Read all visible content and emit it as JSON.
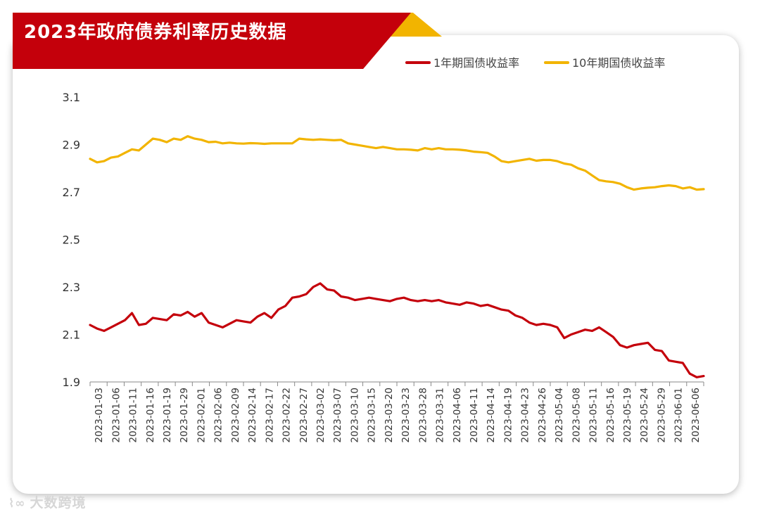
{
  "chart_data": {
    "type": "line",
    "title": "2023年政府债券利率历史数据",
    "ylim": [
      1.9,
      3.1
    ],
    "yticks": [
      "1.9",
      "2.1",
      "2.3",
      "2.5",
      "2.7",
      "2.9",
      "3.1"
    ],
    "grid": false,
    "legend_position": "top-right",
    "xtick_labels": [
      "2023-01-03",
      "2023-01-06",
      "2023-01-11",
      "2023-01-16",
      "2023-01-19",
      "2023-01-29",
      "2023-02-01",
      "2023-02-06",
      "2023-02-09",
      "2023-02-14",
      "2023-02-17",
      "2023-02-22",
      "2023-02-27",
      "2023-03-02",
      "2023-03-07",
      "2023-03-10",
      "2023-03-15",
      "2023-03-20",
      "2023-03-23",
      "2023-03-28",
      "2023-03-31",
      "2023-04-06",
      "2023-04-11",
      "2023-04-14",
      "2023-04-19",
      "2023-04-23",
      "2023-04-26",
      "2023-05-04",
      "2023-05-08",
      "2023-05-11",
      "2023-05-16",
      "2023-05-19",
      "2023-05-24",
      "2023-05-29",
      "2023-06-01",
      "2023-06-06"
    ],
    "series": [
      {
        "name": "1年期国债收益率",
        "color": "#c4000b",
        "values": [
          2.14,
          2.125,
          2.115,
          2.13,
          2.145,
          2.16,
          2.19,
          2.14,
          2.145,
          2.17,
          2.165,
          2.16,
          2.185,
          2.18,
          2.195,
          2.175,
          2.19,
          2.15,
          2.14,
          2.13,
          2.145,
          2.16,
          2.155,
          2.15,
          2.175,
          2.19,
          2.17,
          2.205,
          2.22,
          2.255,
          2.26,
          2.27,
          2.3,
          2.315,
          2.29,
          2.285,
          2.26,
          2.255,
          2.245,
          2.25,
          2.255,
          2.25,
          2.245,
          2.24,
          2.25,
          2.255,
          2.245,
          2.24,
          2.245,
          2.24,
          2.245,
          2.235,
          2.23,
          2.225,
          2.235,
          2.23,
          2.22,
          2.225,
          2.215,
          2.205,
          2.2,
          2.18,
          2.17,
          2.15,
          2.14,
          2.145,
          2.14,
          2.13,
          2.085,
          2.1,
          2.11,
          2.12,
          2.115,
          2.13,
          2.11,
          2.09,
          2.055,
          2.045,
          2.055,
          2.06,
          2.065,
          2.035,
          2.03,
          1.99,
          1.985,
          1.98,
          1.935,
          1.92,
          1.925
        ]
      },
      {
        "name": "10年期国债收益率",
        "color": "#f2b400",
        "values": [
          2.84,
          2.825,
          2.83,
          2.845,
          2.85,
          2.865,
          2.88,
          2.875,
          2.9,
          2.925,
          2.92,
          2.91,
          2.925,
          2.92,
          2.935,
          2.925,
          2.92,
          2.91,
          2.912,
          2.905,
          2.908,
          2.905,
          2.904,
          2.906,
          2.905,
          2.903,
          2.905,
          2.905,
          2.905,
          2.905,
          2.925,
          2.922,
          2.92,
          2.922,
          2.92,
          2.918,
          2.92,
          2.905,
          2.9,
          2.895,
          2.89,
          2.885,
          2.89,
          2.885,
          2.88,
          2.88,
          2.878,
          2.875,
          2.885,
          2.88,
          2.885,
          2.88,
          2.88,
          2.878,
          2.875,
          2.87,
          2.868,
          2.865,
          2.85,
          2.83,
          2.825,
          2.83,
          2.835,
          2.84,
          2.832,
          2.835,
          2.835,
          2.83,
          2.82,
          2.815,
          2.8,
          2.79,
          2.77,
          2.75,
          2.745,
          2.742,
          2.735,
          2.72,
          2.71,
          2.715,
          2.718,
          2.72,
          2.725,
          2.728,
          2.725,
          2.715,
          2.72,
          2.71,
          2.712
        ]
      }
    ]
  },
  "watermark": {
    "logo": "⌇∞",
    "text": "大数跨境"
  }
}
